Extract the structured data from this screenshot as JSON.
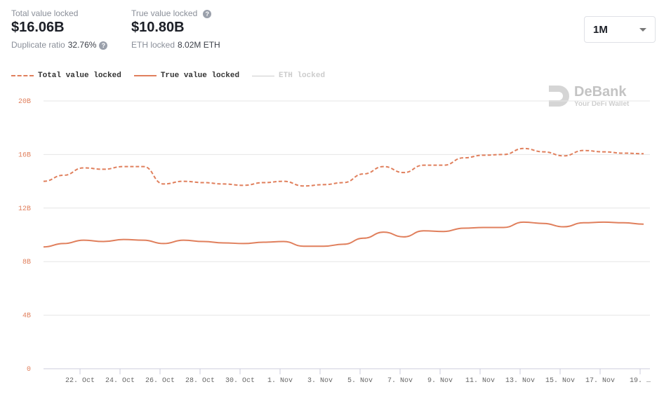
{
  "stats": {
    "tvl": {
      "label": "Total value locked",
      "value": "$16.06B",
      "sub_label": "Duplicate ratio",
      "sub_value": "32.76%"
    },
    "true_vl": {
      "label": "True value locked",
      "value": "$10.80B",
      "sub_label": "ETH locked",
      "sub_value": "8.02M ETH"
    },
    "help_icon": "?"
  },
  "range_select": {
    "value": "1M"
  },
  "watermark": {
    "name": "DeBank",
    "tagline": "Your DeFi Wallet"
  },
  "chart_data": {
    "type": "line",
    "y_ticks": [
      "0",
      "4B",
      "8B",
      "12B",
      "16B",
      "20B"
    ],
    "ylim": [
      0,
      20
    ],
    "x_tick_labels": [
      "22. Oct",
      "24. Oct",
      "26. Oct",
      "28. Oct",
      "30. Oct",
      "1. Nov",
      "3. Nov",
      "5. Nov",
      "7. Nov",
      "9. Nov",
      "11. Nov",
      "13. Nov",
      "15. Nov",
      "17. Nov",
      "19. …"
    ],
    "x_start": "20. Oct",
    "x_end": "19. Nov",
    "legend": [
      "Total value locked",
      "True value locked",
      "ETH locked"
    ],
    "series": [
      {
        "name": "Total value locked",
        "style": "dashed",
        "color": "#e07f5c",
        "values": [
          14.0,
          14.45,
          15.0,
          14.9,
          15.1,
          15.1,
          13.8,
          14.0,
          13.9,
          13.8,
          13.7,
          13.9,
          14.0,
          13.65,
          13.75,
          13.9,
          14.55,
          15.1,
          14.65,
          15.2,
          15.2,
          15.75,
          15.95,
          16.0,
          16.45,
          16.2,
          15.9,
          16.3,
          16.2,
          16.1,
          16.06
        ]
      },
      {
        "name": "True value locked",
        "style": "solid",
        "color": "#e07f5c",
        "values": [
          9.1,
          9.35,
          9.6,
          9.5,
          9.65,
          9.6,
          9.35,
          9.6,
          9.5,
          9.4,
          9.35,
          9.45,
          9.5,
          9.15,
          9.15,
          9.3,
          9.75,
          10.2,
          9.85,
          10.3,
          10.25,
          10.5,
          10.55,
          10.55,
          10.95,
          10.85,
          10.6,
          10.9,
          10.95,
          10.9,
          10.8
        ]
      },
      {
        "name": "ETH locked",
        "style": "hidden",
        "color": "#cccccc",
        "values": []
      }
    ]
  }
}
